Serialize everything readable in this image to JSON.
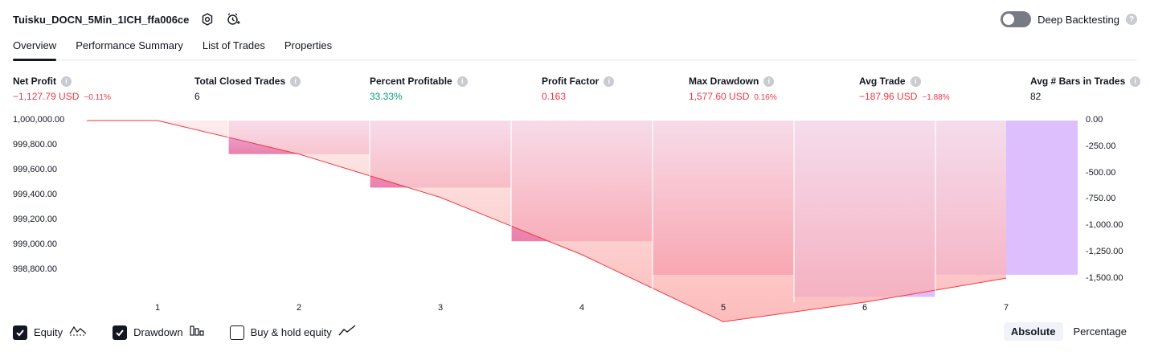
{
  "header": {
    "title": "Tuisku_DOCN_5Min_1ICH_ffa006ce",
    "deep_backtesting_label": "Deep Backtesting",
    "help_mark": "?"
  },
  "tabs": [
    {
      "label": "Overview"
    },
    {
      "label": "Performance Summary"
    },
    {
      "label": "List of Trades"
    },
    {
      "label": "Properties"
    }
  ],
  "stats": {
    "info_mark": "i",
    "net_profit": {
      "label": "Net Profit",
      "value": "−1,127.79 USD",
      "sub": "−0.11%"
    },
    "total_closed_trades": {
      "label": "Total Closed Trades",
      "value": "6"
    },
    "percent_profitable": {
      "label": "Percent Profitable",
      "value": "33.33%"
    },
    "profit_factor": {
      "label": "Profit Factor",
      "value": "0.163"
    },
    "max_drawdown": {
      "label": "Max Drawdown",
      "value": "1,577.60 USD",
      "sub": "0.16%"
    },
    "avg_trade": {
      "label": "Avg Trade",
      "value": "−187.96 USD",
      "sub": "−1.88%"
    },
    "avg_bars": {
      "label": "Avg # Bars in Trades",
      "value": "82"
    }
  },
  "chart_data": {
    "type": "area",
    "x": [
      1,
      2,
      3,
      4,
      5,
      6,
      7
    ],
    "x_tick_labels": [
      "1",
      "2",
      "3",
      "4",
      "5",
      "6",
      "7"
    ],
    "y_left_tick_labels": [
      "1,000,000.00",
      "999,800.00",
      "999,600.00",
      "999,400.00",
      "999,200.00",
      "999,000.00",
      "998,800.00"
    ],
    "y_right_tick_labels": [
      "0.00",
      "-250.00",
      "-500.00",
      "-750.00",
      "-1,000.00",
      "-1,250.00",
      "-1,500.00"
    ],
    "ylim_left": [
      998700,
      1000000
    ],
    "ylim_right": [
      -1625,
      0
    ],
    "series": [
      {
        "name": "Equity",
        "axis": "left",
        "values": [
          1000000,
          999760,
          999450,
          999040,
          998560,
          998700,
          998872
        ]
      },
      {
        "name": "Drawdown",
        "axis": "right",
        "values": [
          0,
          -300,
          -600,
          -1080,
          -1380,
          -1577.6,
          -1380
        ]
      }
    ],
    "colors": {
      "equity_line": "#f23645",
      "equity_fill": "#fca5a5",
      "drawdown_fill": "#d8b4fe",
      "drawdown_fill_deep": "#e879a9"
    }
  },
  "legend": {
    "equity": "Equity",
    "drawdown": "Drawdown",
    "buy_hold": "Buy & hold equity"
  },
  "modes": {
    "absolute": "Absolute",
    "percentage": "Percentage"
  }
}
